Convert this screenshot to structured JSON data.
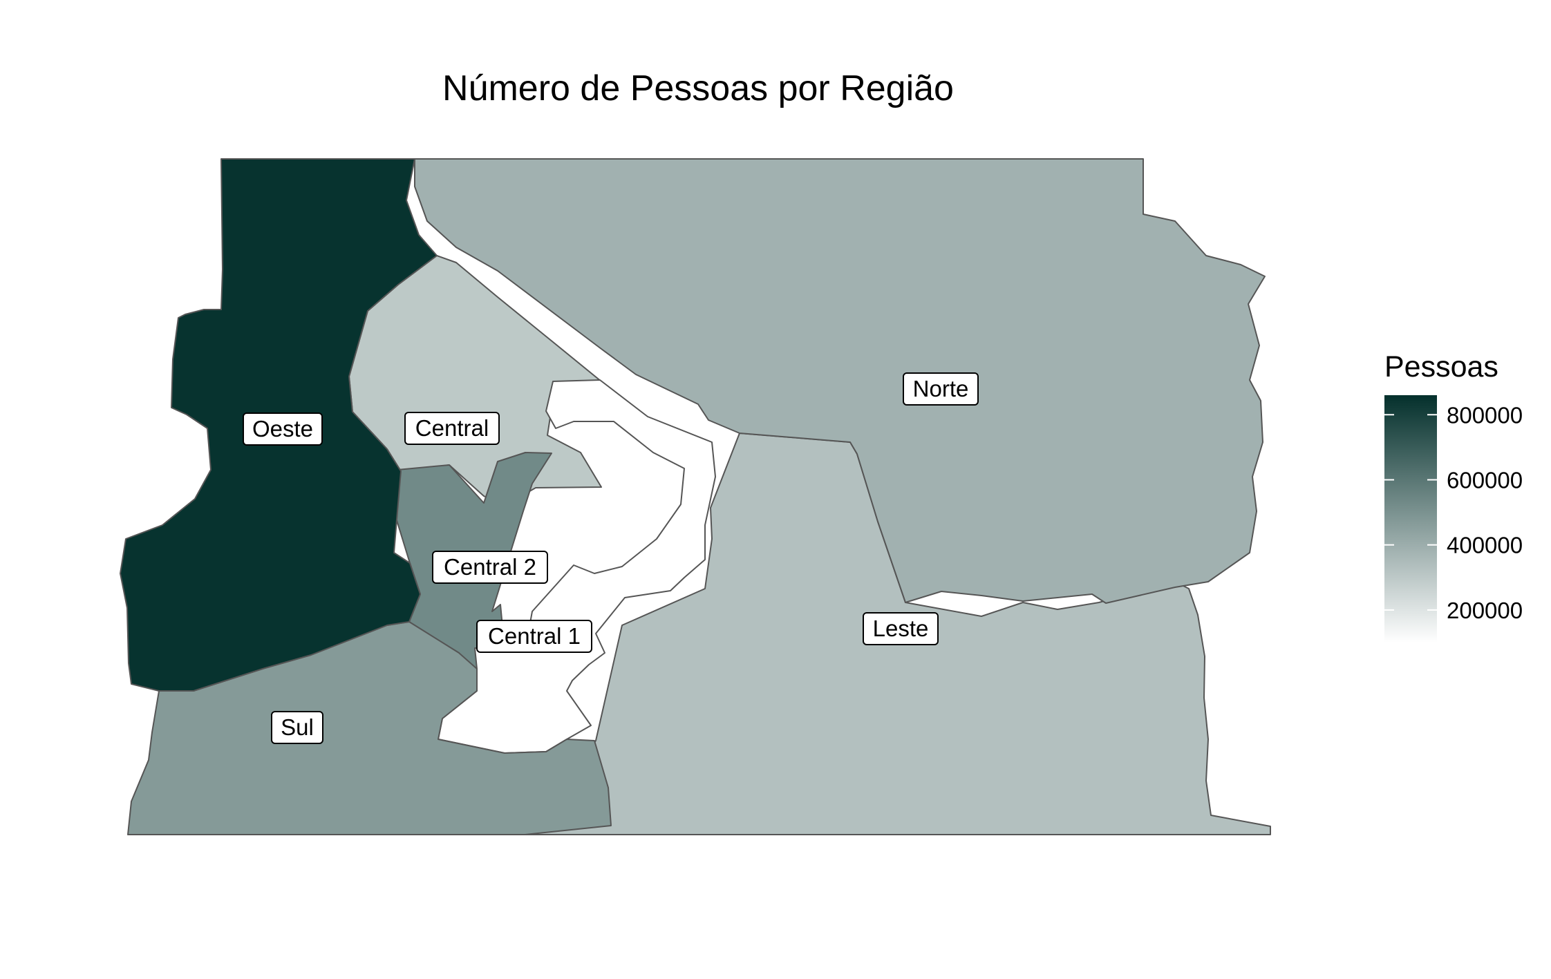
{
  "title": "Número de Pessoas por Região",
  "legend": {
    "title": "Pessoas",
    "min": 100000,
    "max": 860000,
    "ticks": [
      {
        "value": 200000,
        "label": "200000"
      },
      {
        "value": 400000,
        "label": "400000"
      },
      {
        "value": 600000,
        "label": "600000"
      },
      {
        "value": 800000,
        "label": "800000"
      }
    ],
    "color_low": "#ffffff",
    "color_high": "#04302c"
  },
  "regions": [
    {
      "id": "oeste",
      "name": "Oeste",
      "value": 850000
    },
    {
      "id": "central",
      "name": "Central",
      "value": 300000
    },
    {
      "id": "norte",
      "name": "Norte",
      "value": 385000
    },
    {
      "id": "central2",
      "name": "Central 2",
      "value": 530000
    },
    {
      "id": "central1",
      "name": "Central 1",
      "value": 100000
    },
    {
      "id": "leste",
      "name": "Leste",
      "value": 330000
    },
    {
      "id": "sul",
      "name": "Sul",
      "value": 470000
    }
  ]
}
